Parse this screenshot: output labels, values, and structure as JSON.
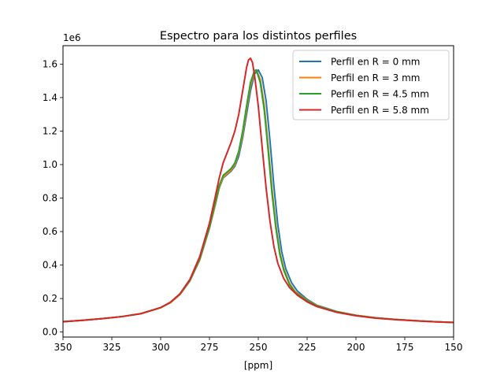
{
  "chart_data": {
    "type": "line",
    "title": "Espectro para los distintos perfiles",
    "xlabel": "[ppm]",
    "ylabel": "",
    "y_multiplier_label": "1e6",
    "xlim": [
      350,
      150
    ],
    "ylim": [
      -0.03,
      1.71
    ],
    "x_ticks": [
      350,
      325,
      300,
      275,
      250,
      225,
      200,
      175,
      150
    ],
    "x_tick_labels": [
      "350",
      "325",
      "300",
      "275",
      "250",
      "225",
      "200",
      "175",
      "150"
    ],
    "y_ticks": [
      0.0,
      0.2,
      0.4,
      0.6,
      0.8,
      1.0,
      1.2,
      1.4,
      1.6
    ],
    "y_tick_labels": [
      "0.0",
      "0.2",
      "0.4",
      "0.6",
      "0.8",
      "1.0",
      "1.2",
      "1.4",
      "1.6"
    ],
    "grid": false,
    "legend_position": "top-right",
    "series": [
      {
        "name": "Perfil en R = 0 mm",
        "color": "#1f77b4",
        "points": [
          [
            350,
            0.062
          ],
          [
            340,
            0.07
          ],
          [
            330,
            0.08
          ],
          [
            320,
            0.092
          ],
          [
            310,
            0.11
          ],
          [
            300,
            0.145
          ],
          [
            295,
            0.175
          ],
          [
            290,
            0.225
          ],
          [
            285,
            0.305
          ],
          [
            280,
            0.43
          ],
          [
            275,
            0.62
          ],
          [
            272,
            0.76
          ],
          [
            270,
            0.86
          ],
          [
            268,
            0.92
          ],
          [
            266,
            0.94
          ],
          [
            264,
            0.96
          ],
          [
            262,
            0.99
          ],
          [
            260,
            1.05
          ],
          [
            258,
            1.16
          ],
          [
            256,
            1.3
          ],
          [
            254,
            1.44
          ],
          [
            252,
            1.54
          ],
          [
            250,
            1.565
          ],
          [
            248,
            1.52
          ],
          [
            246,
            1.38
          ],
          [
            244,
            1.14
          ],
          [
            242,
            0.87
          ],
          [
            240,
            0.64
          ],
          [
            238,
            0.48
          ],
          [
            236,
            0.38
          ],
          [
            233,
            0.295
          ],
          [
            230,
            0.245
          ],
          [
            225,
            0.195
          ],
          [
            220,
            0.16
          ],
          [
            210,
            0.123
          ],
          [
            200,
            0.1
          ],
          [
            190,
            0.085
          ],
          [
            180,
            0.075
          ],
          [
            170,
            0.068
          ],
          [
            160,
            0.062
          ],
          [
            150,
            0.057
          ]
        ]
      },
      {
        "name": "Perfil en R = 3 mm",
        "color": "#ff7f0e",
        "points": [
          [
            350,
            0.062
          ],
          [
            340,
            0.07
          ],
          [
            330,
            0.08
          ],
          [
            320,
            0.092
          ],
          [
            310,
            0.11
          ],
          [
            300,
            0.145
          ],
          [
            295,
            0.175
          ],
          [
            290,
            0.226
          ],
          [
            285,
            0.307
          ],
          [
            280,
            0.432
          ],
          [
            275,
            0.625
          ],
          [
            272,
            0.765
          ],
          [
            270,
            0.865
          ],
          [
            268,
            0.925
          ],
          [
            266,
            0.945
          ],
          [
            264,
            0.965
          ],
          [
            262,
            1.0
          ],
          [
            260,
            1.07
          ],
          [
            258,
            1.18
          ],
          [
            256,
            1.33
          ],
          [
            254,
            1.47
          ],
          [
            252,
            1.555
          ],
          [
            251,
            1.565
          ],
          [
            249,
            1.51
          ],
          [
            247,
            1.36
          ],
          [
            245,
            1.12
          ],
          [
            243,
            0.86
          ],
          [
            241,
            0.64
          ],
          [
            239,
            0.48
          ],
          [
            237,
            0.38
          ],
          [
            234,
            0.29
          ],
          [
            231,
            0.24
          ],
          [
            225,
            0.19
          ],
          [
            220,
            0.158
          ],
          [
            210,
            0.122
          ],
          [
            200,
            0.1
          ],
          [
            190,
            0.085
          ],
          [
            180,
            0.075
          ],
          [
            170,
            0.068
          ],
          [
            160,
            0.062
          ],
          [
            150,
            0.057
          ]
        ]
      },
      {
        "name": "Perfil en R = 4.5 mm",
        "color": "#2ca02c",
        "points": [
          [
            350,
            0.062
          ],
          [
            340,
            0.07
          ],
          [
            330,
            0.08
          ],
          [
            320,
            0.092
          ],
          [
            310,
            0.11
          ],
          [
            300,
            0.146
          ],
          [
            295,
            0.177
          ],
          [
            290,
            0.228
          ],
          [
            285,
            0.31
          ],
          [
            280,
            0.437
          ],
          [
            275,
            0.63
          ],
          [
            272,
            0.775
          ],
          [
            270,
            0.875
          ],
          [
            268,
            0.935
          ],
          [
            266,
            0.955
          ],
          [
            264,
            0.975
          ],
          [
            262,
            1.01
          ],
          [
            260,
            1.08
          ],
          [
            258,
            1.2
          ],
          [
            256,
            1.35
          ],
          [
            254,
            1.49
          ],
          [
            252,
            1.56
          ],
          [
            251,
            1.565
          ],
          [
            249,
            1.49
          ],
          [
            247,
            1.33
          ],
          [
            245,
            1.09
          ],
          [
            243,
            0.83
          ],
          [
            241,
            0.62
          ],
          [
            239,
            0.465
          ],
          [
            237,
            0.37
          ],
          [
            234,
            0.283
          ],
          [
            231,
            0.235
          ],
          [
            225,
            0.187
          ],
          [
            220,
            0.156
          ],
          [
            210,
            0.121
          ],
          [
            200,
            0.099
          ],
          [
            190,
            0.084
          ],
          [
            180,
            0.075
          ],
          [
            170,
            0.068
          ],
          [
            160,
            0.062
          ],
          [
            150,
            0.057
          ]
        ]
      },
      {
        "name": "Perfil en R = 5.8 mm",
        "color": "#d62728",
        "points": [
          [
            350,
            0.062
          ],
          [
            340,
            0.07
          ],
          [
            330,
            0.08
          ],
          [
            320,
            0.092
          ],
          [
            310,
            0.11
          ],
          [
            300,
            0.146
          ],
          [
            295,
            0.178
          ],
          [
            290,
            0.23
          ],
          [
            285,
            0.315
          ],
          [
            280,
            0.45
          ],
          [
            275,
            0.65
          ],
          [
            272,
            0.81
          ],
          [
            270,
            0.92
          ],
          [
            268,
            1.01
          ],
          [
            266,
            1.07
          ],
          [
            264,
            1.13
          ],
          [
            262,
            1.2
          ],
          [
            260,
            1.3
          ],
          [
            258,
            1.44
          ],
          [
            256,
            1.58
          ],
          [
            255,
            1.625
          ],
          [
            254,
            1.635
          ],
          [
            253,
            1.61
          ],
          [
            252,
            1.54
          ],
          [
            250,
            1.35
          ],
          [
            248,
            1.1
          ],
          [
            246,
            0.86
          ],
          [
            244,
            0.66
          ],
          [
            242,
            0.51
          ],
          [
            240,
            0.41
          ],
          [
            237,
            0.32
          ],
          [
            234,
            0.265
          ],
          [
            230,
            0.22
          ],
          [
            225,
            0.18
          ],
          [
            220,
            0.152
          ],
          [
            210,
            0.118
          ],
          [
            200,
            0.097
          ],
          [
            190,
            0.083
          ],
          [
            180,
            0.074
          ],
          [
            170,
            0.067
          ],
          [
            160,
            0.061
          ],
          [
            150,
            0.057
          ]
        ]
      }
    ]
  }
}
